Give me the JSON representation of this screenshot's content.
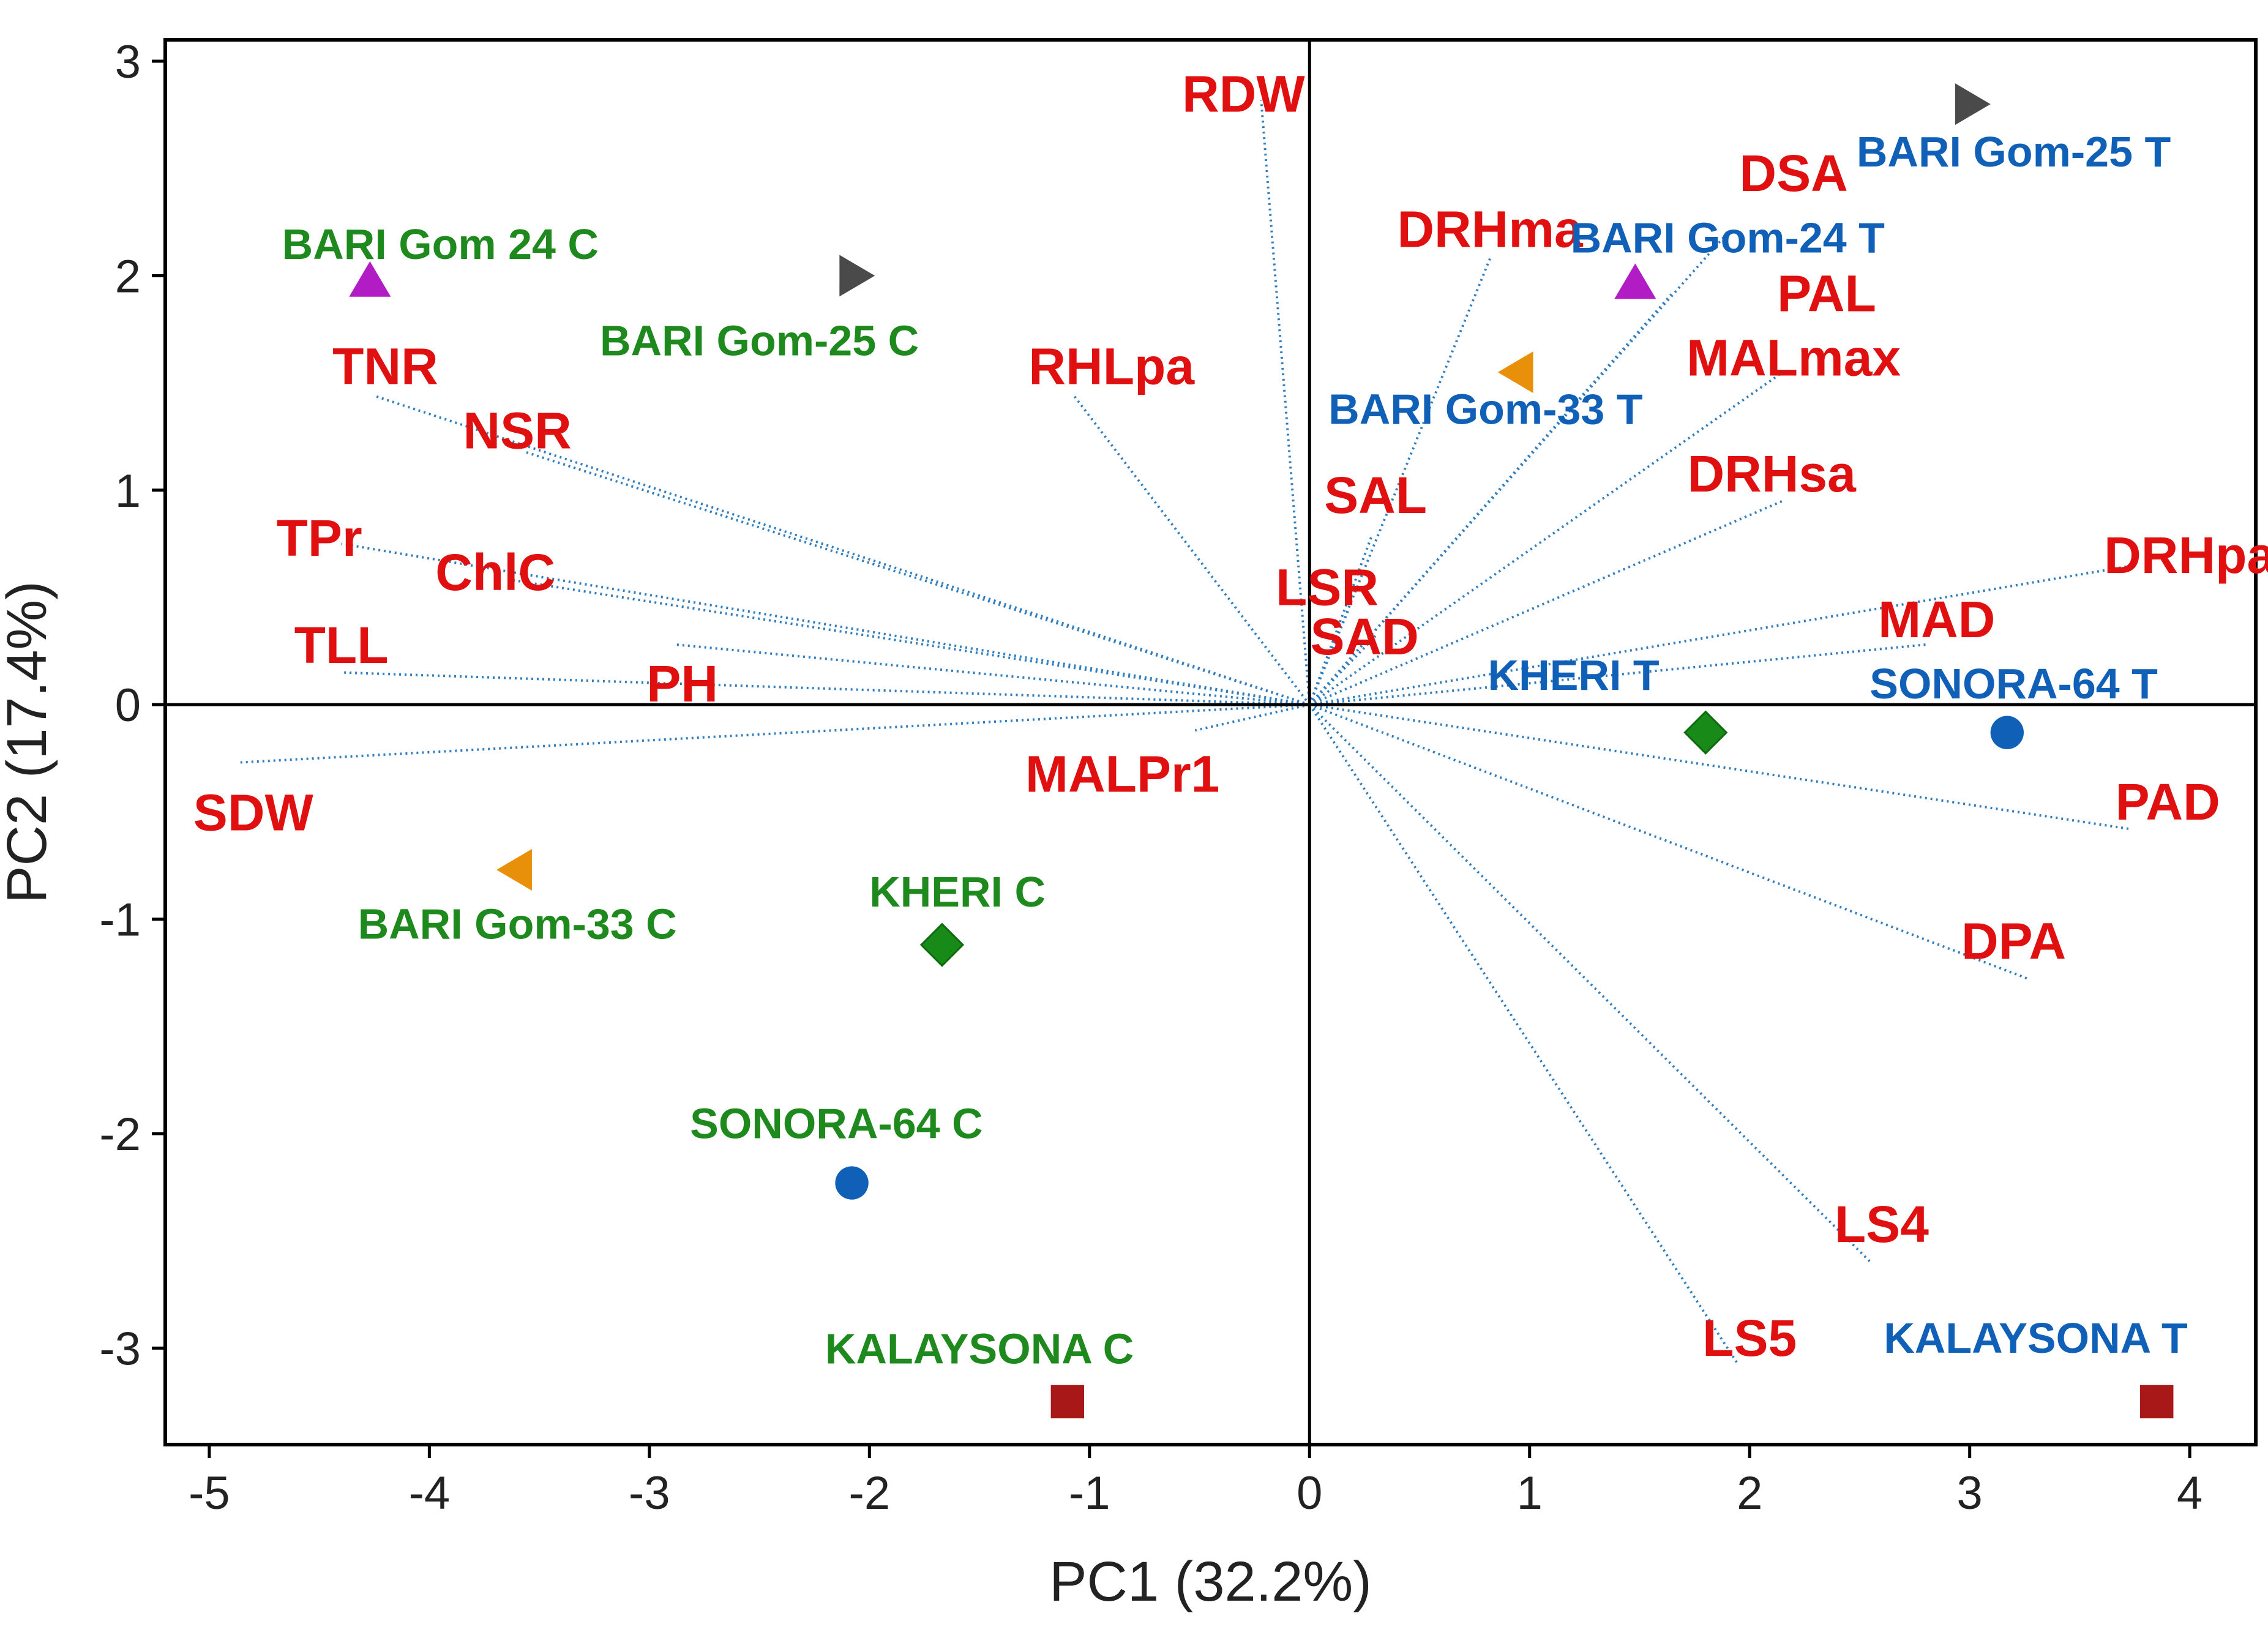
{
  "chart_data": {
    "type": "scatter",
    "subtype": "pca-biplot",
    "xlabel": "PC1 (32.2%)",
    "ylabel": "PC2 (17.4%)",
    "xlim": [
      -5.2,
      4.3
    ],
    "ylim": [
      -3.45,
      3.1
    ],
    "xticks": [
      -5,
      -4,
      -3,
      -2,
      -1,
      0,
      1,
      2,
      3,
      4
    ],
    "yticks": [
      -3,
      -2,
      -1,
      0,
      1,
      2,
      3
    ],
    "loadings": [
      {
        "name": "RDW",
        "x": -0.22,
        "y": 2.82,
        "lx": -0.3,
        "ly": 2.85
      },
      {
        "name": "DSA",
        "x": 1.9,
        "y": 2.2,
        "lx": 2.2,
        "ly": 2.48
      },
      {
        "name": "DRHma",
        "x": 0.82,
        "y": 2.08,
        "lx": 0.82,
        "ly": 2.22
      },
      {
        "name": "PAL",
        "x": 1.65,
        "y": 1.92,
        "lx": 2.35,
        "ly": 1.92
      },
      {
        "name": "MALmax",
        "x": 2.15,
        "y": 1.55,
        "lx": 2.2,
        "ly": 1.62
      },
      {
        "name": "RHLpa",
        "x": -1.07,
        "y": 1.44,
        "lx": -0.9,
        "ly": 1.58
      },
      {
        "name": "DRHsa",
        "x": 2.15,
        "y": 0.95,
        "lx": 2.1,
        "ly": 1.08
      },
      {
        "name": "SAL",
        "x": 0.28,
        "y": 0.78,
        "lx": 0.3,
        "ly": 0.98
      },
      {
        "name": "LSR",
        "x": 0.18,
        "y": 0.45,
        "lx": 0.08,
        "ly": 0.55
      },
      {
        "name": "SAD",
        "x": 0.3,
        "y": 0.32,
        "lx": 0.25,
        "ly": 0.32
      },
      {
        "name": "DRHpa",
        "x": 3.75,
        "y": 0.65,
        "lx": 4.0,
        "ly": 0.7
      },
      {
        "name": "MAD",
        "x": 2.8,
        "y": 0.28,
        "lx": 2.85,
        "ly": 0.4
      },
      {
        "name": "TNR",
        "x": -4.25,
        "y": 1.44,
        "lx": -4.2,
        "ly": 1.58
      },
      {
        "name": "NSR",
        "x": -3.57,
        "y": 1.18,
        "lx": -3.6,
        "ly": 1.28
      },
      {
        "name": "TPr",
        "x": -4.4,
        "y": 0.75,
        "lx": -4.5,
        "ly": 0.78
      },
      {
        "name": "ChlC",
        "x": -3.62,
        "y": 0.58,
        "lx": -3.7,
        "ly": 0.62
      },
      {
        "name": "TLL",
        "x": -4.4,
        "y": 0.15,
        "lx": -4.4,
        "ly": 0.28
      },
      {
        "name": "PH",
        "x": -2.88,
        "y": 0.28,
        "lx": -2.85,
        "ly": 0.1
      },
      {
        "name": "MALPr1",
        "x": -0.52,
        "y": -0.12,
        "lx": -0.85,
        "ly": -0.32
      },
      {
        "name": "SDW",
        "x": -4.87,
        "y": -0.27,
        "lx": -4.8,
        "ly": -0.5
      },
      {
        "name": "PAD",
        "x": 3.73,
        "y": -0.58,
        "lx": 3.9,
        "ly": -0.45
      },
      {
        "name": "DPA",
        "x": 3.27,
        "y": -1.28,
        "lx": 3.2,
        "ly": -1.1
      },
      {
        "name": "LS4",
        "x": 2.55,
        "y": -2.6,
        "lx": 2.6,
        "ly": -2.42
      },
      {
        "name": "LS5",
        "x": 1.95,
        "y": -3.08,
        "lx": 2.0,
        "ly": -2.95
      }
    ],
    "scores": [
      {
        "name": "BARI Gom 24 C",
        "x": -4.27,
        "y": 1.97,
        "marker": "triangle-up",
        "color": "#b21cc4",
        "label_color": "#1e8a1e",
        "lx": -3.95,
        "ly": 2.15
      },
      {
        "name": "BARI Gom-25 C",
        "x": -2.07,
        "y": 2.0,
        "marker": "triangle-right",
        "color": "#4a4a4a",
        "label_color": "#1e8a1e",
        "lx": -2.5,
        "ly": 1.7
      },
      {
        "name": "BARI Gom-33 C",
        "x": -3.6,
        "y": -0.77,
        "marker": "triangle-left",
        "color": "#e8900a",
        "label_color": "#1e8a1e",
        "lx": -3.6,
        "ly": -1.02
      },
      {
        "name": "KHERI C",
        "x": -1.67,
        "y": -1.12,
        "marker": "diamond",
        "color": "#178a17",
        "label_color": "#1e8a1e",
        "lx": -1.6,
        "ly": -0.87
      },
      {
        "name": "SONORA-64 C",
        "x": -2.08,
        "y": -2.23,
        "marker": "circle",
        "color": "#1060b8",
        "label_color": "#1e8a1e",
        "lx": -2.15,
        "ly": -1.95
      },
      {
        "name": "KALAYSONA C",
        "x": -1.1,
        "y": -3.25,
        "marker": "square",
        "color": "#a81818",
        "label_color": "#1e8a1e",
        "lx": -1.5,
        "ly": -3.0
      },
      {
        "name": "BARI Gom-25 T",
        "x": 3.0,
        "y": 2.8,
        "marker": "triangle-right",
        "color": "#4a4a4a",
        "label_color": "#1060b8",
        "lx": 3.2,
        "ly": 2.58
      },
      {
        "name": "BARI Gom-24 T",
        "x": 1.48,
        "y": 1.96,
        "marker": "triangle-up",
        "color": "#b21cc4",
        "label_color": "#1060b8",
        "lx": 1.9,
        "ly": 2.18
      },
      {
        "name": "BARI Gom-33 T",
        "x": 0.95,
        "y": 1.55,
        "marker": "triangle-left",
        "color": "#e8900a",
        "label_color": "#1060b8",
        "lx": 0.8,
        "ly": 1.38
      },
      {
        "name": "KHERI T",
        "x": 1.8,
        "y": -0.13,
        "marker": "diamond",
        "color": "#178a17",
        "label_color": "#1060b8",
        "lx": 1.2,
        "ly": 0.14
      },
      {
        "name": "SONORA-64 T",
        "x": 3.17,
        "y": -0.13,
        "marker": "circle",
        "color": "#1060b8",
        "label_color": "#1060b8",
        "lx": 3.2,
        "ly": 0.1
      },
      {
        "name": "KALAYSONA T",
        "x": 3.85,
        "y": -3.25,
        "marker": "square",
        "color": "#a81818",
        "label_color": "#1060b8",
        "lx": 3.3,
        "ly": -2.95
      }
    ],
    "colors": {
      "loading_line": "#2f7fc0",
      "variable_label": "#e01010",
      "control_label": "#1e8a1e",
      "treatment_label": "#1060b8"
    }
  }
}
